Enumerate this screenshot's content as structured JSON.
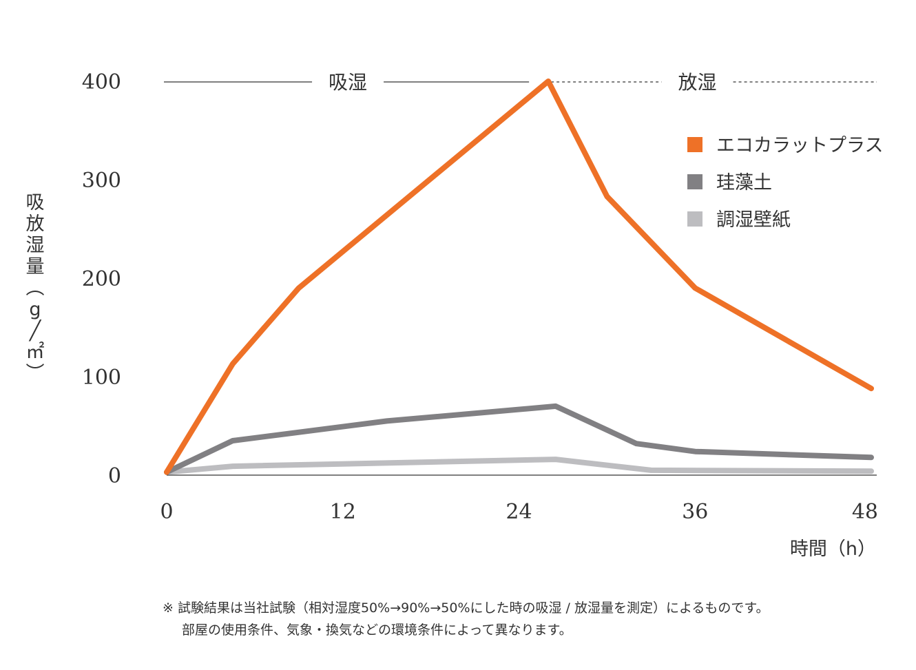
{
  "chart_data": {
    "type": "line",
    "xlabel": "時間（h）",
    "ylabel": "吸放湿量（g／㎡）",
    "x_ticks": [
      "0",
      "12",
      "24",
      "36",
      "48"
    ],
    "y_ticks": [
      "0",
      "100",
      "200",
      "300",
      "400"
    ],
    "xlim": [
      0,
      48
    ],
    "ylim": [
      0,
      400
    ],
    "phases": [
      {
        "label": "吸湿",
        "range": [
          0,
          26
        ],
        "style": "solid"
      },
      {
        "label": "放湿",
        "range": [
          26,
          48
        ],
        "style": "dashed"
      }
    ],
    "legend_position": "top-right",
    "series": [
      {
        "name": "エコカラットプラス",
        "color": "#EE7127",
        "x": [
          0,
          4.5,
          9,
          26,
          30,
          36,
          48
        ],
        "y": [
          3,
          113,
          190,
          400,
          283,
          190,
          88
        ]
      },
      {
        "name": "珪藻土",
        "color": "#818083",
        "x": [
          0,
          4.5,
          15,
          26.5,
          32,
          36,
          48
        ],
        "y": [
          3,
          35,
          55,
          70,
          32,
          24,
          18
        ]
      },
      {
        "name": "調湿壁紙",
        "color": "#BDBDC0",
        "x": [
          0,
          4.5,
          26.5,
          33,
          48
        ],
        "y": [
          3,
          9,
          16,
          5,
          4
        ]
      }
    ]
  },
  "footnote": {
    "line1": "※ 試験結果は当社試験（相対湿度50%→90%→50%にした時の吸湿 / 放湿量を測定）によるものです。",
    "line2": "部屋の使用条件、気象・換気などの環境条件によって異なります。"
  }
}
